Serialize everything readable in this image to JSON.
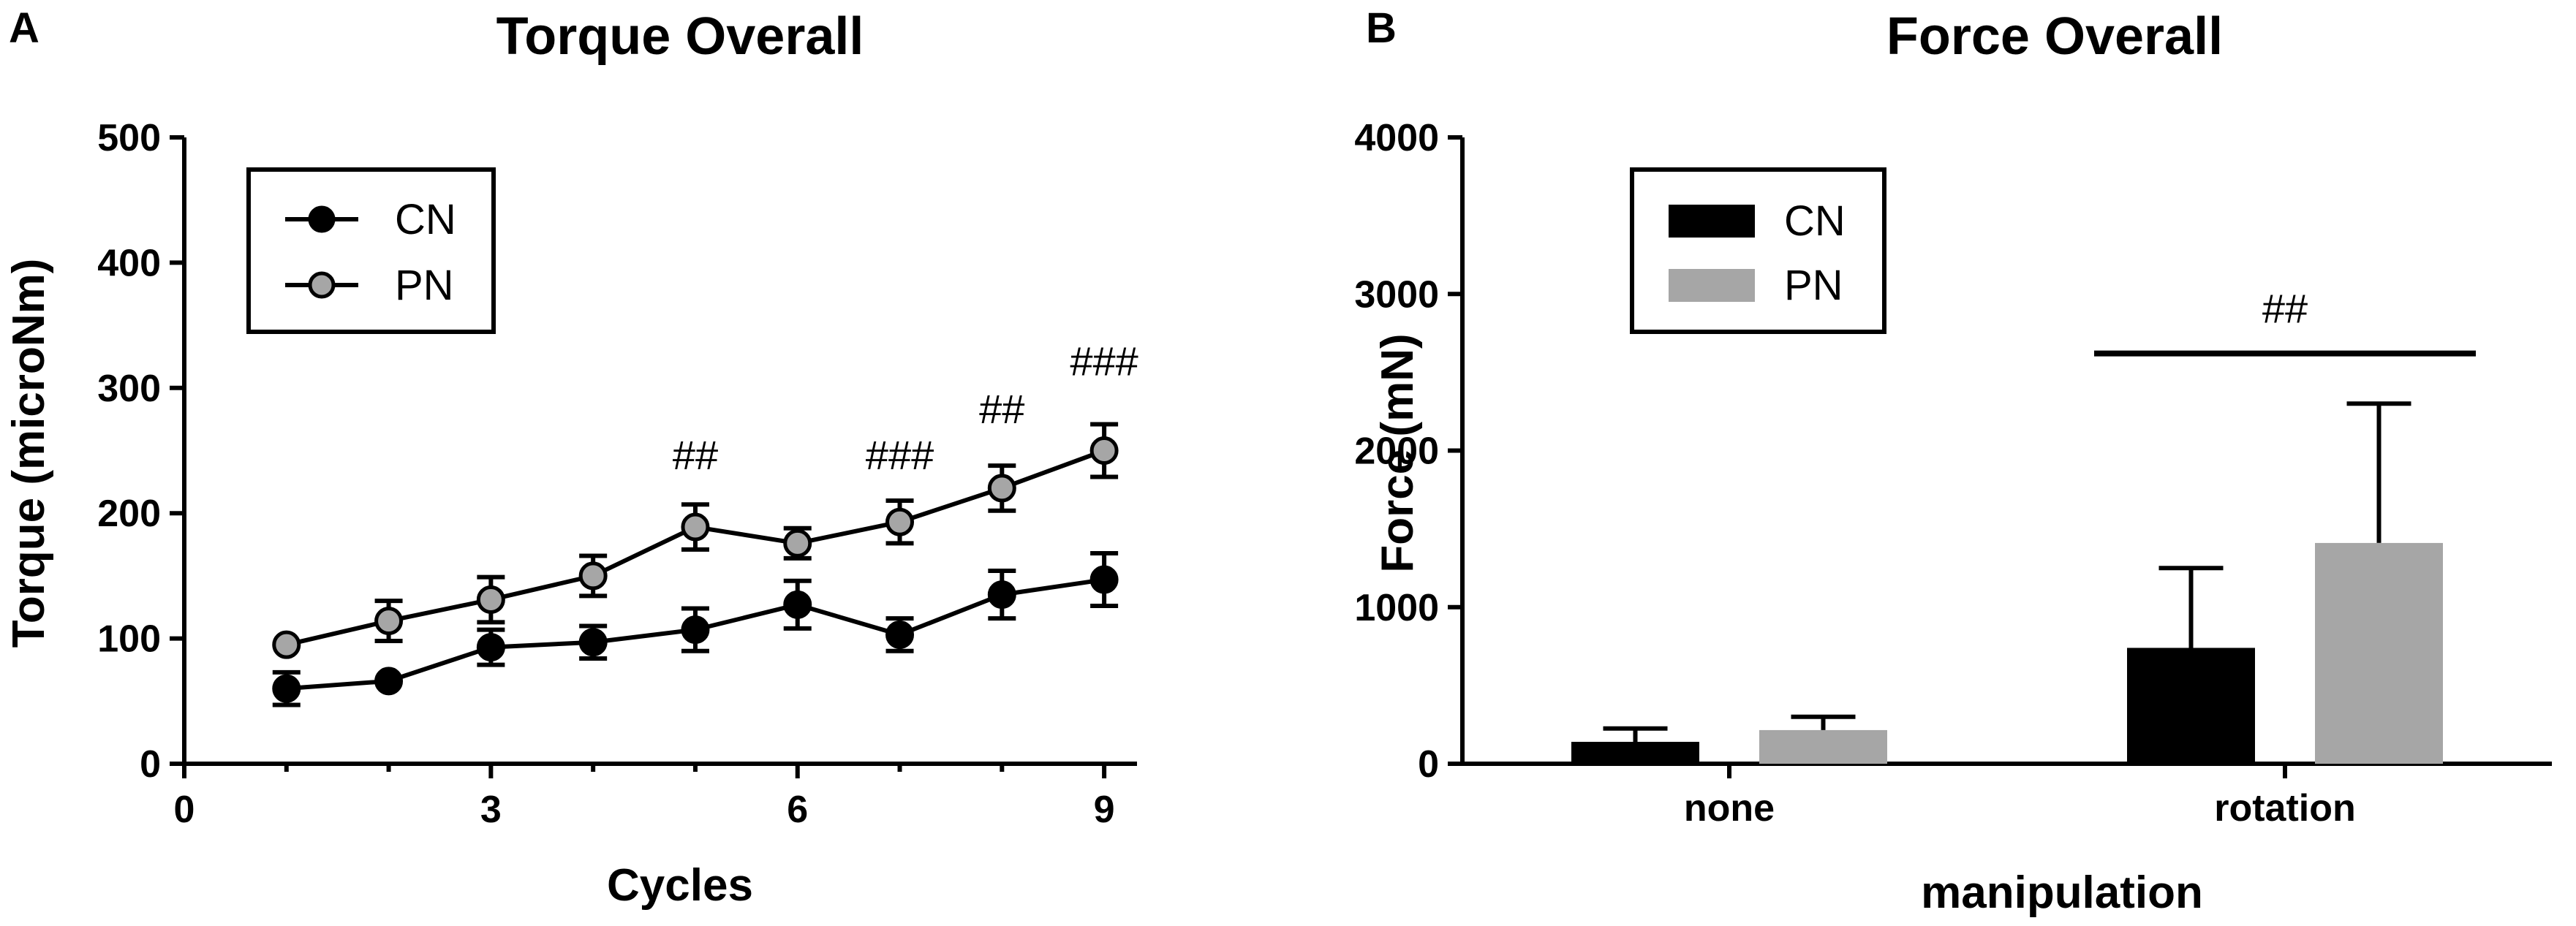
{
  "chart_data": [
    {
      "panel_label": "A",
      "type": "line",
      "title": "Torque Overall",
      "xlabel": "Cycles",
      "ylabel": "Torque (microNm)",
      "xlim": [
        0,
        9.5
      ],
      "ylim": [
        0,
        500
      ],
      "xticks": [
        0,
        3,
        6,
        9
      ],
      "yticks": [
        0,
        100,
        200,
        300,
        400,
        500
      ],
      "grid": false,
      "legend_placement": "top-left",
      "x": [
        1,
        2,
        3,
        4,
        5,
        6,
        7,
        8,
        9
      ],
      "series": [
        {
          "name": "CN",
          "color": "#000000",
          "marker": "filled-black-circle",
          "values": [
            60,
            66,
            93,
            97,
            107,
            127,
            103,
            135,
            147
          ],
          "error": [
            13,
            0,
            14,
            13,
            17,
            19,
            13,
            19,
            21
          ]
        },
        {
          "name": "PN",
          "color": "#a6a6a6",
          "marker": "grey-circle-black-outline",
          "values": [
            95,
            114,
            131,
            150,
            189,
            176,
            193,
            220,
            250
          ],
          "error": [
            0,
            16,
            18,
            16,
            18,
            12,
            17,
            18,
            21
          ]
        }
      ],
      "annotations": [
        {
          "x": 5,
          "y": 235,
          "text": "##"
        },
        {
          "x": 7,
          "y": 235,
          "text": "###"
        },
        {
          "x": 8,
          "y": 272,
          "text": "##"
        },
        {
          "x": 9,
          "y": 310,
          "text": "###"
        }
      ]
    },
    {
      "panel_label": "B",
      "type": "bar",
      "title": "Force Overall",
      "xlabel": "manipulation",
      "ylabel": "Force (mN)",
      "ylim": [
        0,
        4000
      ],
      "yticks": [
        0,
        1000,
        2000,
        3000,
        4000
      ],
      "grid": false,
      "legend_placement": "top-left",
      "categories": [
        "none",
        "rotation"
      ],
      "series": [
        {
          "name": "CN",
          "color": "#000000",
          "values": [
            140,
            740
          ],
          "error": [
            85,
            510
          ]
        },
        {
          "name": "PN",
          "color": "#a6a6a6",
          "values": [
            215,
            1410
          ],
          "error": [
            85,
            890
          ]
        }
      ],
      "significance": {
        "category": "rotation",
        "y": 2620,
        "text": "##"
      }
    }
  ]
}
